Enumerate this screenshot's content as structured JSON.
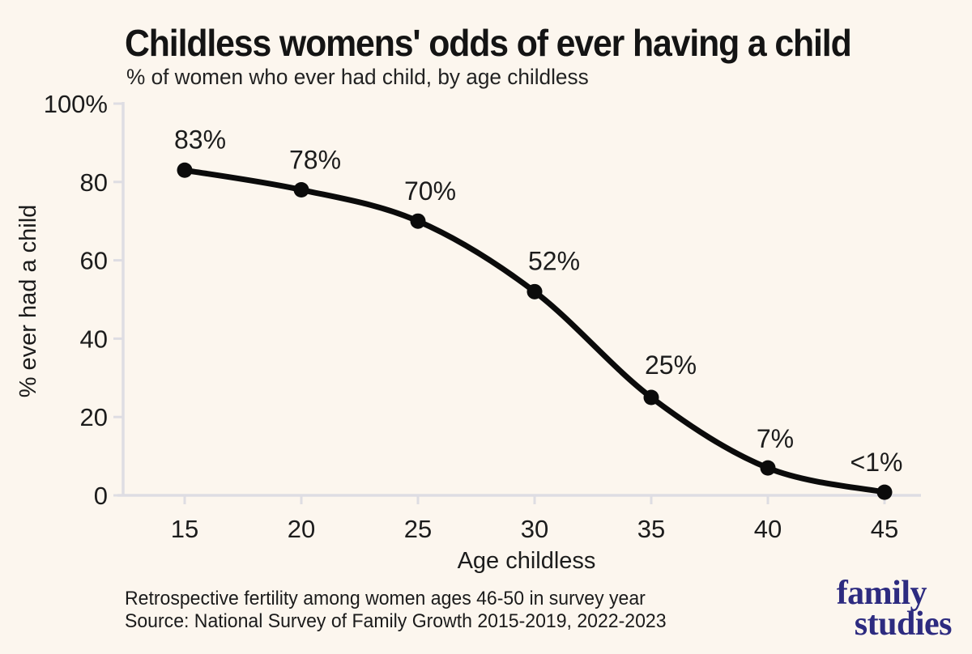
{
  "header": {
    "title": "Childless womens' odds of ever having a child",
    "subtitle": "% of women who ever had child, by age childless"
  },
  "footer": {
    "note": "Retrospective fertility among women ages 46-50 in survey year",
    "source": "Source: National Survey of Family Growth 2015-2019, 2022-2023"
  },
  "logo": {
    "line1": "family",
    "line2": "studies"
  },
  "colors": {
    "background": "#fcf6ee",
    "text": "#1c1c1c",
    "axis": "#dedde3",
    "line": "#0b0b0b",
    "logo": "#2d2b80"
  },
  "chart_data": {
    "type": "line",
    "title": "Childless womens' odds of ever having a child",
    "subtitle": "% of women who ever had child, by age childless",
    "x": [
      15,
      20,
      25,
      30,
      35,
      40,
      45
    ],
    "values": [
      83,
      78,
      70,
      52,
      25,
      7,
      0.8
    ],
    "point_labels": [
      "83%",
      "78%",
      "70%",
      "52%",
      "25%",
      "7%",
      "<1%"
    ],
    "x_tick_labels": [
      "15",
      "20",
      "25",
      "30",
      "35",
      "40",
      "45"
    ],
    "y_ticks": [
      {
        "value": 0,
        "label": "0"
      },
      {
        "value": 20,
        "label": "20"
      },
      {
        "value": 40,
        "label": "40"
      },
      {
        "value": 60,
        "label": "60"
      },
      {
        "value": 80,
        "label": "80"
      },
      {
        "value": 100,
        "label": "100%"
      }
    ],
    "xlabel": "Age childless",
    "ylabel": "% ever had a child",
    "xlim": [
      15,
      45
    ],
    "ylim": [
      0,
      100
    ],
    "grid": false,
    "legend": "none",
    "line_color": "#0b0b0b"
  }
}
